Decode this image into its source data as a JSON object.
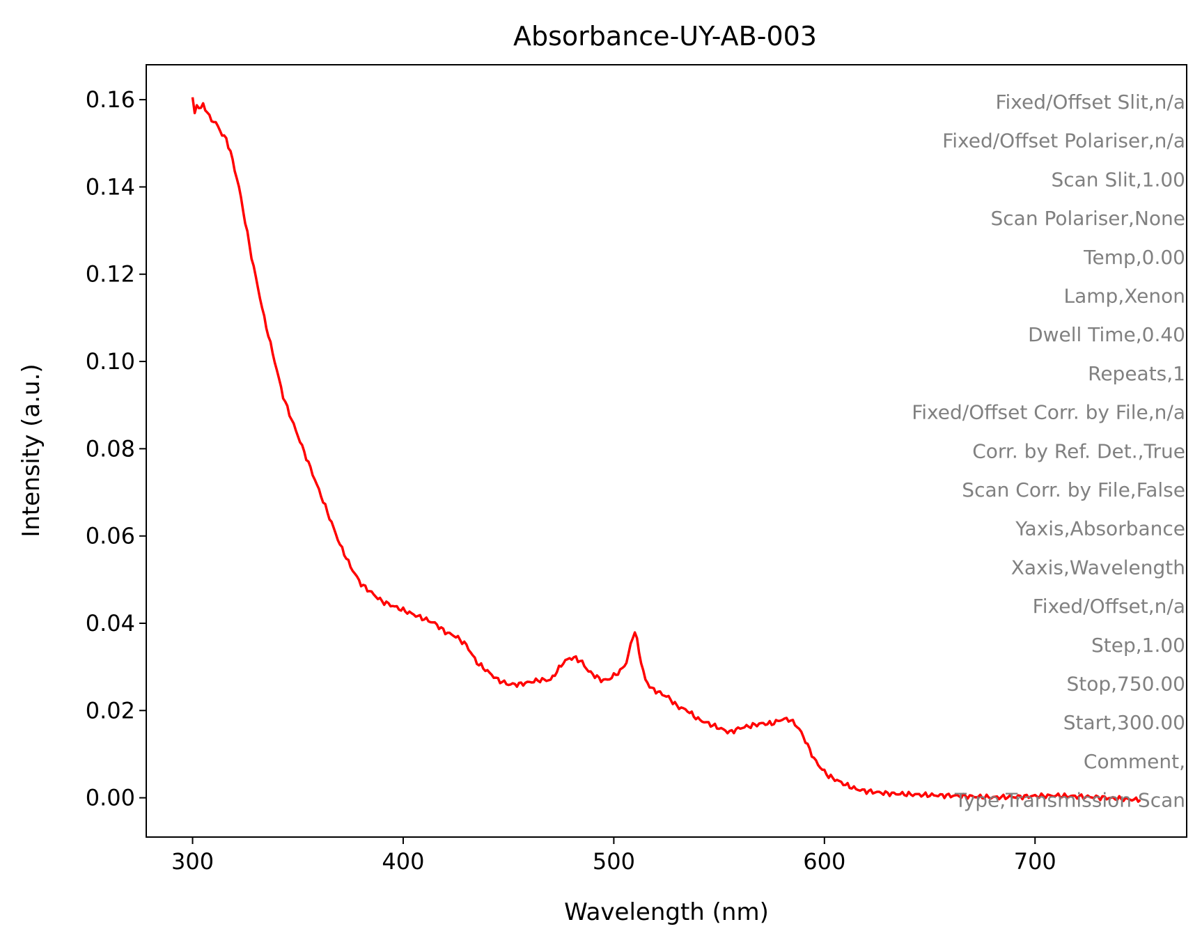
{
  "chart_data": {
    "type": "line",
    "title": "Absorbance-UY-AB-003",
    "xlabel": "Wavelength (nm)",
    "ylabel": "Intensity (a.u.)",
    "xlim": [
      278,
      772
    ],
    "ylim": [
      -0.009,
      0.168
    ],
    "xticks": [
      300,
      400,
      500,
      600,
      700
    ],
    "xtick_labels": [
      "300",
      "400",
      "500",
      "600",
      "700"
    ],
    "yticks": [
      0.0,
      0.02,
      0.04,
      0.06,
      0.08,
      0.1,
      0.12,
      0.14,
      0.16
    ],
    "ytick_labels": [
      "0.00",
      "0.02",
      "0.04",
      "0.06",
      "0.08",
      "0.10",
      "0.12",
      "0.14",
      "0.16"
    ],
    "grid": false,
    "line_color": "#ff0000",
    "annotation_color": "#808080",
    "annotations": [
      "Fixed/Offset Slit,n/a",
      "Fixed/Offset Polariser,n/a",
      "Scan Slit,1.00",
      "Scan Polariser,None",
      "Temp,0.00",
      "Lamp,Xenon",
      "Dwell Time,0.40",
      "Repeats,1",
      "Fixed/Offset Corr. by File,n/a",
      "Corr. by Ref. Det.,True",
      "Scan Corr. by File,False",
      "Yaxis,Absorbance",
      "Xaxis,Wavelength",
      "Fixed/Offset,n/a",
      "Step,1.00",
      "Stop,750.00",
      "Start,300.00",
      "Comment,",
      "Type,Transmission Scan"
    ],
    "series": [
      {
        "x": [
          300,
          301,
          302,
          303,
          304,
          305,
          306,
          308,
          310,
          312,
          314,
          316,
          318,
          320,
          322,
          325,
          328,
          331,
          334,
          337,
          340,
          343,
          346,
          350,
          354,
          358,
          362,
          366,
          370,
          375,
          380,
          385,
          390,
          395,
          400,
          405,
          410,
          415,
          420,
          425,
          430,
          435,
          440,
          445,
          450,
          455,
          460,
          465,
          470,
          473,
          476,
          479,
          482,
          485,
          488,
          491,
          494,
          497,
          500,
          503,
          506,
          508,
          509,
          510,
          511,
          513,
          515,
          518,
          522,
          526,
          530,
          535,
          540,
          545,
          550,
          555,
          560,
          565,
          570,
          575,
          580,
          583,
          586,
          589,
          592,
          595,
          598,
          602,
          606,
          610,
          615,
          620,
          630,
          640,
          650,
          660,
          670,
          680,
          690,
          700,
          710,
          720,
          730,
          740,
          750
        ],
        "y": [
          0.16,
          0.157,
          0.159,
          0.158,
          0.158,
          0.159,
          0.158,
          0.156,
          0.155,
          0.154,
          0.152,
          0.151,
          0.148,
          0.144,
          0.14,
          0.132,
          0.124,
          0.117,
          0.11,
          0.104,
          0.098,
          0.092,
          0.088,
          0.083,
          0.078,
          0.073,
          0.068,
          0.063,
          0.058,
          0.053,
          0.049,
          0.047,
          0.045,
          0.044,
          0.043,
          0.042,
          0.041,
          0.04,
          0.038,
          0.037,
          0.035,
          0.031,
          0.029,
          0.027,
          0.026,
          0.026,
          0.0265,
          0.027,
          0.027,
          0.029,
          0.031,
          0.032,
          0.032,
          0.031,
          0.029,
          0.028,
          0.027,
          0.027,
          0.028,
          0.029,
          0.031,
          0.035,
          0.037,
          0.038,
          0.036,
          0.031,
          0.027,
          0.025,
          0.024,
          0.023,
          0.021,
          0.02,
          0.018,
          0.017,
          0.016,
          0.015,
          0.016,
          0.0165,
          0.017,
          0.017,
          0.018,
          0.018,
          0.017,
          0.015,
          0.012,
          0.009,
          0.007,
          0.005,
          0.004,
          0.003,
          0.002,
          0.0015,
          0.001,
          0.0008,
          0.0006,
          0.0005,
          0.0003,
          0.0001,
          0.0002,
          0.0004,
          0.0005,
          0.0003,
          0.0001,
          -0.0002,
          -0.0005
        ]
      }
    ]
  }
}
